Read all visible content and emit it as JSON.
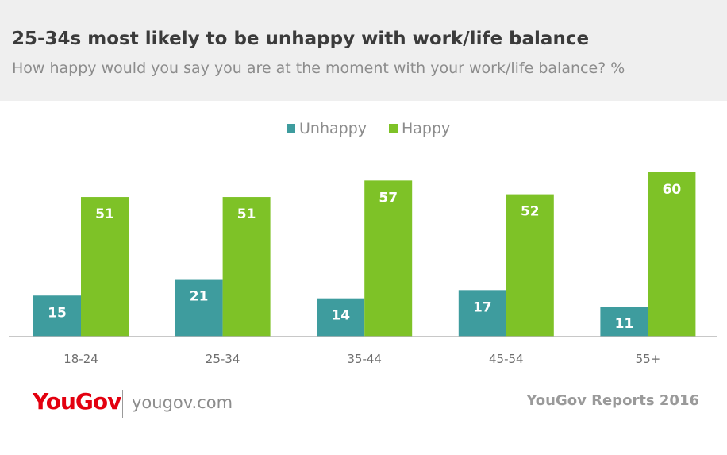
{
  "header": {
    "title": "25-34s most likely to be unhappy with work/life balance",
    "subtitle": "How happy would you say you are at the moment with your work/life balance? %"
  },
  "colors": {
    "unhappy": "#3e9c9e",
    "happy": "#7ec227",
    "header_bg": "#efefef",
    "brand_red": "#e3000f"
  },
  "chart_data": {
    "type": "bar",
    "categories": [
      "18-24",
      "25-34",
      "35-44",
      "45-54",
      "55+"
    ],
    "series": [
      {
        "name": "Unhappy",
        "values": [
          15,
          21,
          14,
          17,
          11
        ]
      },
      {
        "name": "Happy",
        "values": [
          51,
          51,
          57,
          52,
          60
        ]
      }
    ],
    "ylim": [
      0,
      60
    ],
    "legend": "top-center",
    "grid": false,
    "data_labels": true
  },
  "footer": {
    "logo_you": "You",
    "logo_gov": "Gov",
    "site": "yougov.com",
    "reports": "YouGov Reports 2016"
  }
}
